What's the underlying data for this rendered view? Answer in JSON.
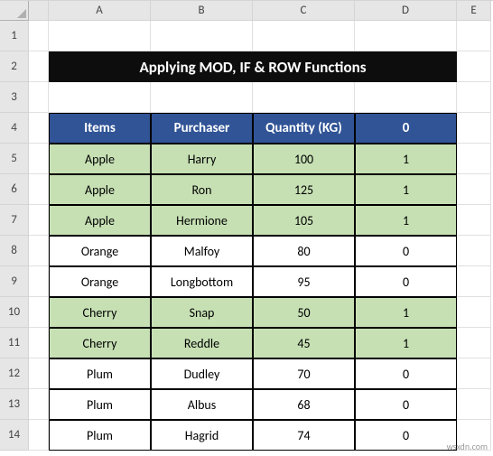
{
  "columns": [
    "A",
    "B",
    "C",
    "D",
    "E"
  ],
  "rows": [
    "1",
    "2",
    "3",
    "4",
    "5",
    "6",
    "7",
    "8",
    "9",
    "10",
    "11",
    "12",
    "13",
    "14"
  ],
  "title": "Applying MOD, IF & ROW Functions",
  "headers": [
    "Items",
    "Purchaser",
    "Quantity (KG)",
    "0"
  ],
  "data": [
    {
      "items": "Apple",
      "purchaser": "Harry",
      "qty": "100",
      "flag": "1",
      "shade": true
    },
    {
      "items": "Apple",
      "purchaser": "Ron",
      "qty": "125",
      "flag": "1",
      "shade": true
    },
    {
      "items": "Apple",
      "purchaser": "Hermione",
      "qty": "105",
      "flag": "1",
      "shade": true
    },
    {
      "items": "Orange",
      "purchaser": "Malfoy",
      "qty": "80",
      "flag": "0",
      "shade": false
    },
    {
      "items": "Orange",
      "purchaser": "Longbottom",
      "qty": "95",
      "flag": "0",
      "shade": false
    },
    {
      "items": "Cherry",
      "purchaser": "Snap",
      "qty": "50",
      "flag": "1",
      "shade": true
    },
    {
      "items": "Cherry",
      "purchaser": "Reddle",
      "qty": "45",
      "flag": "1",
      "shade": true
    },
    {
      "items": "Plum",
      "purchaser": "Dudley",
      "qty": "70",
      "flag": "0",
      "shade": false
    },
    {
      "items": "Plum",
      "purchaser": "Albus",
      "qty": "68",
      "flag": "0",
      "shade": false
    },
    {
      "items": "Plum",
      "purchaser": "Hagrid",
      "qty": "74",
      "flag": "0",
      "shade": false
    }
  ],
  "watermark": "wsxdn.com",
  "colors": {
    "header_bg": "#305496",
    "shade_bg": "#c6e0b4",
    "title_bg": "#0d0d0d"
  }
}
